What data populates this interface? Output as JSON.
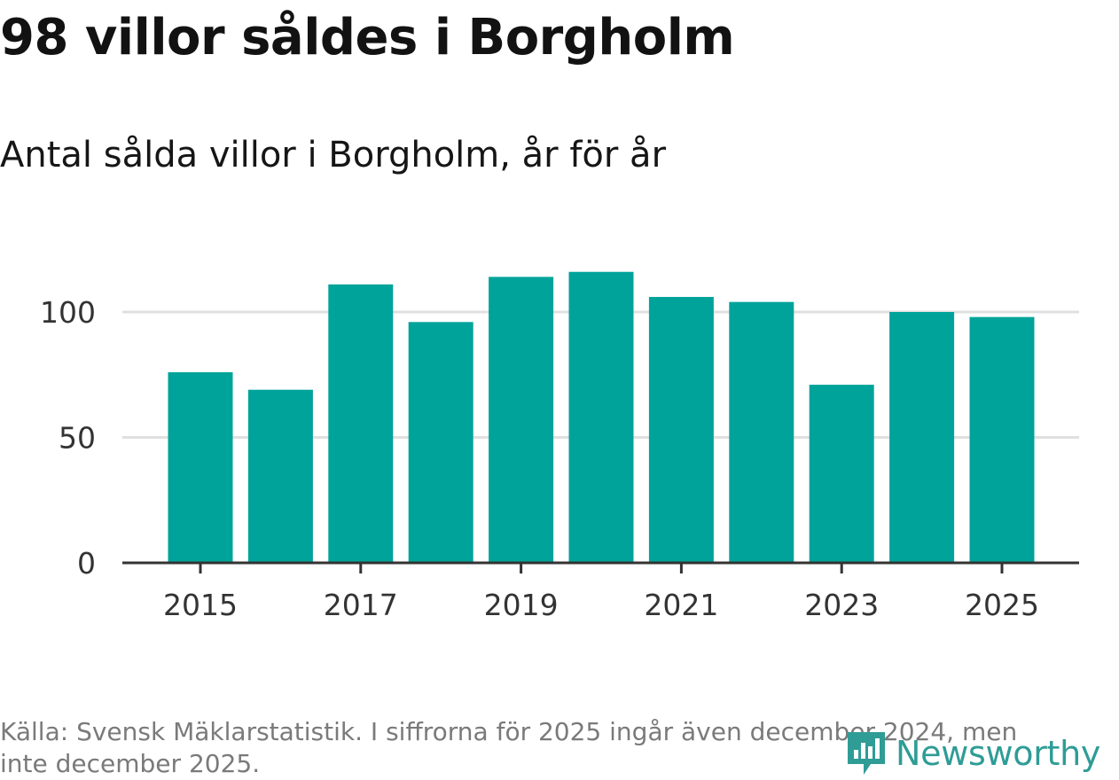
{
  "colors": {
    "bar": "#00a39a",
    "grid": "#e0e0e0",
    "axis": "#333333",
    "brand": "#2f9c96"
  },
  "title": "98 villor såldes i Borgholm",
  "subtitle": "Antal sålda villor i Borgholm, år för år",
  "footnote": "Källa: Svensk Mäklarstatistik. I siffrorna för 2025 ingår även december 2024, men inte december 2025.",
  "logo": {
    "text": "Newsworthy",
    "icon": "newsworthy-logo-icon"
  },
  "chart_data": {
    "type": "bar",
    "title": "Antal sålda villor i Borgholm, år för år",
    "categories": [
      "2015",
      "2016",
      "2017",
      "2018",
      "2019",
      "2020",
      "2021",
      "2022",
      "2023",
      "2024",
      "2025"
    ],
    "values": [
      76,
      69,
      111,
      96,
      114,
      116,
      106,
      104,
      71,
      100,
      98
    ],
    "xticks": [
      "2015",
      "2017",
      "2019",
      "2021",
      "2023",
      "2025"
    ],
    "yticks": [
      0,
      50,
      100
    ],
    "ylim": [
      0,
      120
    ],
    "xlabel": "",
    "ylabel": "",
    "grid": true
  }
}
